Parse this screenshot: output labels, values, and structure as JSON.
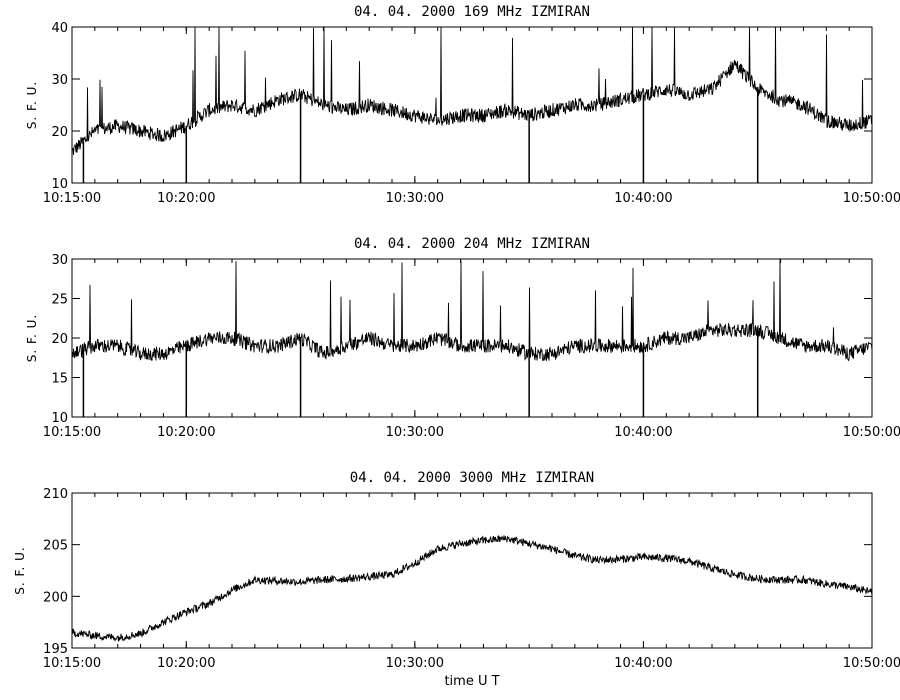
{
  "chart_data": [
    {
      "type": "line",
      "title": "04.  04.  2000    169  MHz    IZMIRAN",
      "ylabel": "S. F. U.",
      "xlabel": "",
      "xlim": [
        "10:15:00",
        "10:50:00"
      ],
      "ylim": [
        10,
        40
      ],
      "xtick_labels": [
        "10:15:00",
        "10:20:00",
        "10:30:00",
        "10:40:00",
        "10:50:00"
      ],
      "ytick_labels": [
        "10",
        "20",
        "30",
        "40"
      ],
      "grid": false,
      "series": [
        {
          "x": [
            "10:15:00",
            "10:16:00",
            "10:17:00",
            "10:18:00",
            "10:19:00",
            "10:20:00",
            "10:21:00",
            "10:22:00",
            "10:23:00",
            "10:24:00",
            "10:25:00",
            "10:26:00",
            "10:27:00",
            "10:28:00",
            "10:29:00",
            "10:30:00",
            "10:31:00",
            "10:32:00",
            "10:33:00",
            "10:34:00",
            "10:35:00",
            "10:36:00",
            "10:37:00",
            "10:38:00",
            "10:39:00",
            "10:40:00",
            "10:41:00",
            "10:42:00",
            "10:43:00",
            "10:44:00",
            "10:45:00",
            "10:46:00",
            "10:47:00",
            "10:48:00",
            "10:49:00",
            "10:50:00"
          ],
          "values": [
            16,
            20,
            21,
            20,
            19,
            21,
            24,
            25,
            24,
            26,
            27,
            25,
            24,
            25,
            24,
            23,
            22,
            23,
            23,
            24,
            23,
            24,
            25,
            25,
            26,
            27,
            28,
            27,
            28,
            33,
            28,
            26,
            25,
            22,
            21,
            22
          ]
        }
      ]
    },
    {
      "type": "line",
      "title": "04.  04.  2000    204  MHz    IZMIRAN",
      "ylabel": "S. F. U.",
      "xlabel": "",
      "xlim": [
        "10:15:00",
        "10:50:00"
      ],
      "ylim": [
        10,
        30
      ],
      "xtick_labels": [
        "10:15:00",
        "10:20:00",
        "10:30:00",
        "10:40:00",
        "10:50:00"
      ],
      "ytick_labels": [
        "10",
        "15",
        "20",
        "25",
        "30"
      ],
      "grid": false,
      "series": [
        {
          "x": [
            "10:15:00",
            "10:16:00",
            "10:17:00",
            "10:18:00",
            "10:19:00",
            "10:20:00",
            "10:21:00",
            "10:22:00",
            "10:23:00",
            "10:24:00",
            "10:25:00",
            "10:26:00",
            "10:27:00",
            "10:28:00",
            "10:29:00",
            "10:30:00",
            "10:31:00",
            "10:32:00",
            "10:33:00",
            "10:34:00",
            "10:35:00",
            "10:36:00",
            "10:37:00",
            "10:38:00",
            "10:39:00",
            "10:40:00",
            "10:41:00",
            "10:42:00",
            "10:43:00",
            "10:44:00",
            "10:45:00",
            "10:46:00",
            "10:47:00",
            "10:48:00",
            "10:49:00",
            "10:50:00"
          ],
          "values": [
            18,
            19,
            19,
            18,
            18,
            19,
            20,
            20,
            19,
            19,
            20,
            18,
            19,
            20,
            19,
            19,
            20,
            19,
            19,
            19,
            18,
            18,
            19,
            19,
            19,
            19,
            20,
            20,
            21,
            21,
            21,
            20,
            19,
            19,
            18,
            19
          ]
        }
      ]
    },
    {
      "type": "line",
      "title": "04.  04.  2000    3000  MHz    IZMIRAN",
      "ylabel": "S. F. U.",
      "xlabel": "time   U T",
      "xlim": [
        "10:15:00",
        "10:50:00"
      ],
      "ylim": [
        195,
        210
      ],
      "xtick_labels": [
        "10:15:00",
        "10:20:00",
        "10:30:00",
        "10:40:00",
        "10:50:00"
      ],
      "ytick_labels": [
        "195",
        "200",
        "205",
        "210"
      ],
      "grid": false,
      "series": [
        {
          "x": [
            "10:15:00",
            "10:16:00",
            "10:17:00",
            "10:18:00",
            "10:19:00",
            "10:20:00",
            "10:21:00",
            "10:22:00",
            "10:23:00",
            "10:24:00",
            "10:25:00",
            "10:26:00",
            "10:27:00",
            "10:28:00",
            "10:29:00",
            "10:30:00",
            "10:31:00",
            "10:32:00",
            "10:33:00",
            "10:34:00",
            "10:35:00",
            "10:36:00",
            "10:37:00",
            "10:38:00",
            "10:39:00",
            "10:40:00",
            "10:41:00",
            "10:42:00",
            "10:43:00",
            "10:44:00",
            "10:45:00",
            "10:46:00",
            "10:47:00",
            "10:48:00",
            "10:49:00",
            "10:50:00"
          ],
          "values": [
            196.5,
            196.2,
            196.0,
            196.4,
            197.5,
            198.5,
            199.3,
            200.6,
            201.6,
            201.5,
            201.4,
            201.6,
            201.7,
            201.9,
            202.1,
            203.2,
            204.6,
            205.1,
            205.4,
            205.6,
            205.1,
            204.6,
            203.9,
            203.5,
            203.6,
            203.8,
            203.7,
            203.4,
            202.7,
            202.1,
            201.7,
            201.6,
            201.6,
            201.2,
            200.9,
            200.4
          ]
        }
      ]
    }
  ]
}
